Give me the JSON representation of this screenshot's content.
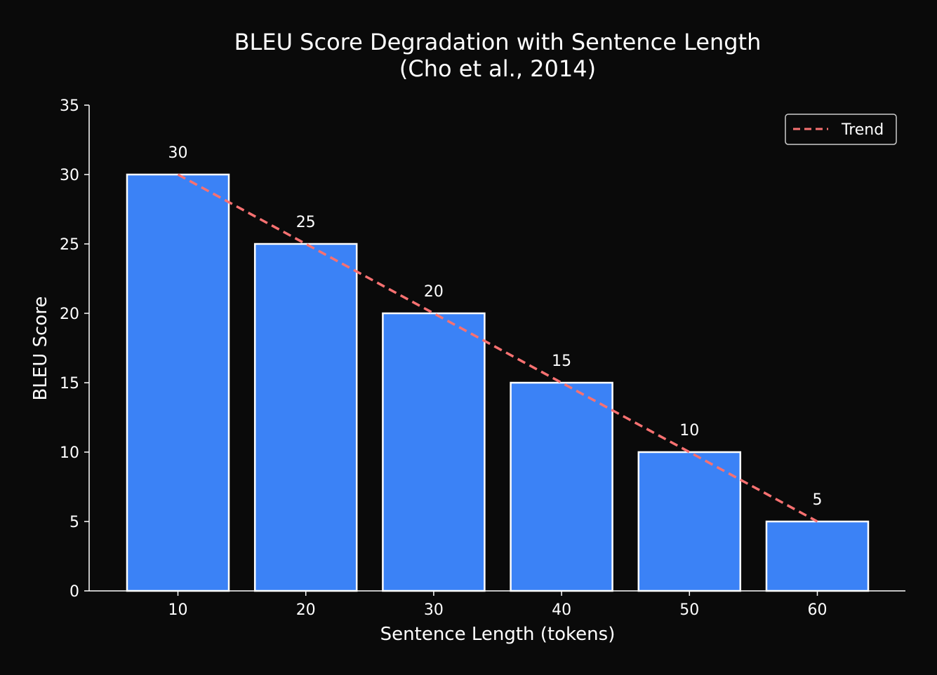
{
  "chart_data": {
    "type": "bar",
    "title_line1": "BLEU Score Degradation with Sentence Length",
    "title_line2": "(Cho et al., 2014)",
    "xlabel": "Sentence Length (tokens)",
    "ylabel": "BLEU Score",
    "categories": [
      "10",
      "20",
      "30",
      "40",
      "50",
      "60"
    ],
    "values": [
      30,
      25,
      20,
      15,
      10,
      5
    ],
    "ylim": [
      0,
      35
    ],
    "yticks": [
      0,
      5,
      10,
      15,
      20,
      25,
      30,
      35
    ],
    "trend": {
      "name": "Trend",
      "values": [
        30,
        25,
        20,
        15,
        10,
        5
      ]
    },
    "legend_position": "top-right",
    "grid": false,
    "colors": {
      "background": "#0a0a0a",
      "bar_fill": "#3b82f6",
      "bar_edge": "#ffffff",
      "trend_line": "#f87171",
      "text": "#ffffff"
    }
  }
}
